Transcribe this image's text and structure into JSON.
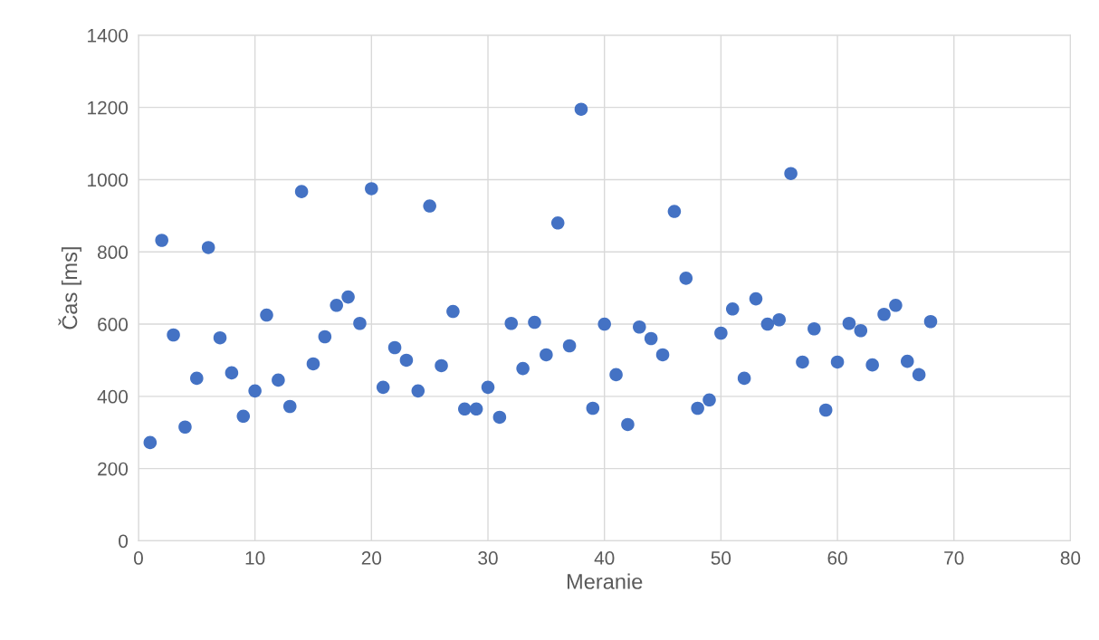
{
  "chart_data": {
    "type": "scatter",
    "xlabel": "Meranie",
    "ylabel": "Čas [ms]",
    "x": [
      1,
      2,
      3,
      4,
      5,
      6,
      7,
      8,
      9,
      10,
      11,
      12,
      13,
      14,
      15,
      16,
      17,
      18,
      19,
      20,
      21,
      22,
      23,
      24,
      25,
      26,
      27,
      28,
      29,
      30,
      31,
      32,
      33,
      34,
      35,
      36,
      37,
      38,
      39,
      40,
      41,
      42,
      43,
      44,
      45,
      46,
      47,
      48,
      49,
      50,
      51,
      52,
      53,
      54,
      55,
      56,
      57,
      58,
      59,
      60,
      61,
      62,
      63,
      64,
      65,
      66,
      67,
      68
    ],
    "series": [
      {
        "color": "#4472c4",
        "values": [
          272,
          832,
          570,
          315,
          450,
          812,
          562,
          465,
          345,
          415,
          625,
          445,
          372,
          967,
          490,
          565,
          652,
          675,
          602,
          975,
          425,
          535,
          500,
          415,
          927,
          485,
          635,
          365,
          365,
          425,
          342,
          602,
          477,
          605,
          515,
          880,
          540,
          1195,
          367,
          600,
          460,
          322,
          592,
          560,
          515,
          912,
          727,
          367,
          390,
          575,
          642,
          450,
          670,
          600,
          612,
          1017,
          495,
          587,
          362,
          495,
          602,
          582,
          487,
          627,
          652,
          497,
          460,
          607
        ]
      }
    ],
    "xlim": [
      0,
      80
    ],
    "xticks": [
      0,
      10,
      20,
      30,
      40,
      50,
      60,
      70,
      80
    ],
    "ylim": [
      0,
      1400
    ],
    "yticks": [
      0,
      200,
      400,
      600,
      800,
      1000,
      1200,
      1400
    ],
    "grid": true,
    "marker": "circle",
    "legend": false
  }
}
